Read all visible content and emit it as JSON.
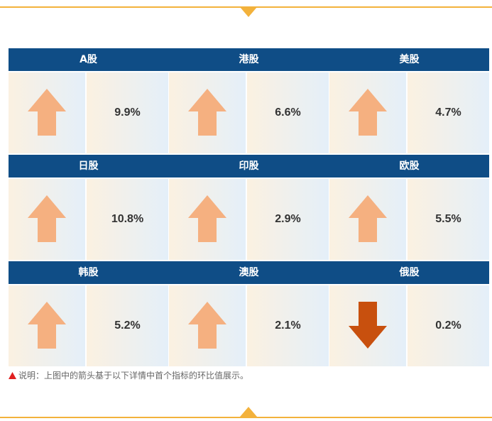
{
  "colors": {
    "accent": "#f3b23c",
    "header_bg": "#0f4d86",
    "arrow_up": "#f5b080",
    "arrow_down": "#c8500e",
    "note_icon": "#e02020"
  },
  "markets": [
    {
      "name": "A股",
      "value": "9.9%",
      "direction": "up",
      "icon": "arrow-up-icon"
    },
    {
      "name": "港股",
      "value": "6.6%",
      "direction": "up",
      "icon": "arrow-up-icon"
    },
    {
      "name": "美股",
      "value": "4.7%",
      "direction": "up",
      "icon": "arrow-up-icon"
    },
    {
      "name": "日股",
      "value": "10.8%",
      "direction": "up",
      "icon": "arrow-up-icon"
    },
    {
      "name": "印股",
      "value": "2.9%",
      "direction": "up",
      "icon": "arrow-up-icon"
    },
    {
      "name": "欧股",
      "value": "5.5%",
      "direction": "up",
      "icon": "arrow-up-icon"
    },
    {
      "name": "韩股",
      "value": "5.2%",
      "direction": "up",
      "icon": "arrow-up-icon"
    },
    {
      "name": "澳股",
      "value": "2.1%",
      "direction": "up",
      "icon": "arrow-up-icon"
    },
    {
      "name": "俄股",
      "value": "0.2%",
      "direction": "down",
      "icon": "arrow-down-icon"
    }
  ],
  "note": {
    "icon": "warning-triangle-icon",
    "text": "说明：上图中的箭头基于以下详情中首个指标的环比值展示。"
  }
}
